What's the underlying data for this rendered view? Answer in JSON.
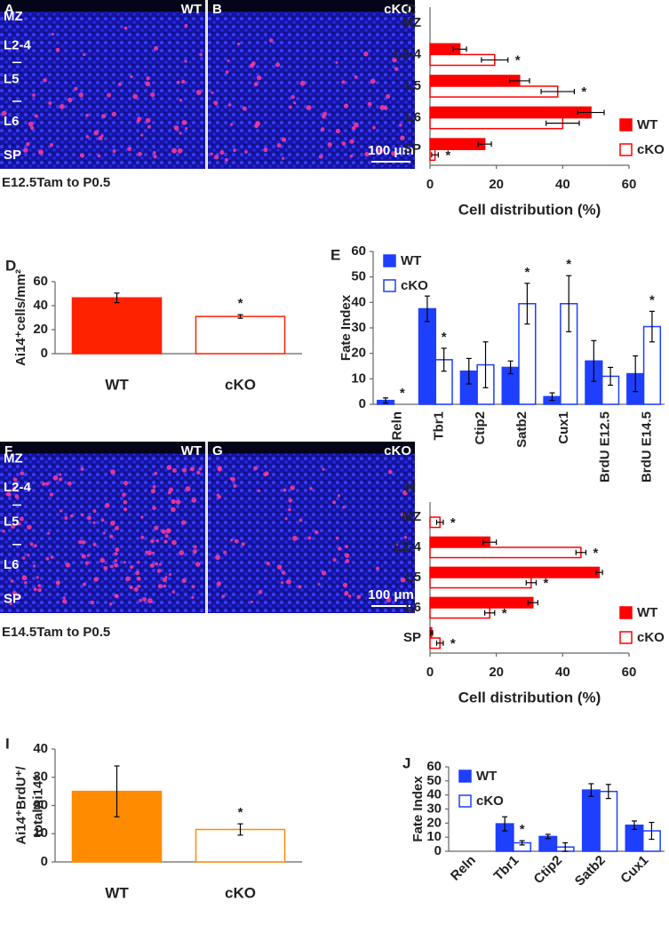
{
  "image_panels": [
    {
      "letters": [
        "A",
        "B"
      ],
      "conditions": [
        "WT",
        "cKO"
      ],
      "layers": [
        "MZ",
        "L2-4",
        "L5",
        "L6",
        "SP"
      ],
      "scale_bar": "100 μm",
      "caption": "E12.5Tam to P0.5"
    },
    {
      "letters": [
        "F",
        "G"
      ],
      "conditions": [
        "WT",
        "cKO"
      ],
      "layers": [
        "MZ",
        "L2-4",
        "L5",
        "L6",
        "SP"
      ],
      "scale_bar": "100 μm",
      "caption": "E14.5Tam to P0.5"
    }
  ],
  "chart_data": [
    {
      "type": "hbar",
      "panel": "C",
      "categories": [
        "MZ",
        "L2-4",
        "L5",
        "L6",
        "SP"
      ],
      "series": [
        {
          "name": "WT",
          "color": "#ff0000",
          "style": "solid",
          "values": [
            0,
            9,
            27,
            48.5,
            16.5
          ],
          "errors": [
            0,
            2,
            3,
            4,
            2
          ]
        },
        {
          "name": "cKO",
          "color": "#ff0000",
          "style": "outline",
          "values": [
            0,
            19.5,
            38.5,
            40,
            1.5
          ],
          "errors": [
            0,
            4,
            5,
            5,
            1
          ]
        }
      ],
      "significance": [
        null,
        "*",
        "*",
        null,
        "*"
      ],
      "xlim": [
        0,
        60
      ],
      "xticks": [
        0,
        20,
        40,
        60
      ],
      "xlabel": "Cell distribution (%)",
      "legend": "lower right"
    },
    {
      "type": "bar",
      "panel": "D",
      "categories": [
        "WT",
        "cKO"
      ],
      "values": [
        46.5,
        31
      ],
      "errors": [
        4,
        1.5
      ],
      "color": "#ff2200",
      "styles": [
        "solid",
        "outline"
      ],
      "significance": [
        null,
        "*"
      ],
      "ylim": [
        0,
        60
      ],
      "yticks": [
        0,
        20,
        40,
        60
      ],
      "ylabel": [
        "Ai14⁺cells/mm²"
      ]
    },
    {
      "type": "grouped",
      "panel": "E",
      "categories": [
        "Reln",
        "Tbr1",
        "Ctip2",
        "Satb2",
        "Cux1",
        "BrdU E12.5",
        "BrdU E14.5"
      ],
      "series": [
        {
          "name": "WT",
          "color": "#1f3fff",
          "style": "solid",
          "values": [
            1.5,
            37.5,
            13,
            14.5,
            3,
            17,
            12
          ],
          "errors": [
            1,
            5,
            5,
            2.5,
            1.5,
            8,
            7
          ]
        },
        {
          "name": "cKO",
          "color": "#1f3fff",
          "style": "outline",
          "values": [
            0,
            17.5,
            15.5,
            39.5,
            39.5,
            11,
            30.5
          ],
          "errors": [
            0,
            4.5,
            9,
            8,
            11,
            3.5,
            6
          ]
        }
      ],
      "significance": [
        "*",
        "*",
        null,
        "*",
        "*",
        null,
        "*"
      ],
      "ylim": [
        0,
        60
      ],
      "yticks": [
        0,
        10,
        20,
        30,
        40,
        50,
        60
      ],
      "ylabel": [
        "Fate Index"
      ],
      "legend": "upper left",
      "label_rotation": -90
    },
    {
      "type": "hbar",
      "panel": "H",
      "categories": [
        "MZ",
        "L2-4",
        "L5",
        "L6",
        "SP"
      ],
      "series": [
        {
          "name": "WT",
          "color": "#ff0000",
          "style": "solid",
          "values": [
            0,
            18,
            51,
            31,
            0.5
          ],
          "errors": [
            0,
            2,
            1,
            1.5,
            0.3
          ]
        },
        {
          "name": "cKO",
          "color": "#ff0000",
          "style": "outline",
          "values": [
            3,
            45.5,
            30.5,
            18,
            3
          ],
          "errors": [
            1,
            1.5,
            1.5,
            1.5,
            1
          ]
        }
      ],
      "significance": [
        "*",
        "*",
        "*",
        "*",
        "*"
      ],
      "xlim": [
        0,
        60
      ],
      "xticks": [
        0,
        20,
        40,
        60
      ],
      "xlabel": "Cell distribution (%)",
      "legend": "lower right"
    },
    {
      "type": "bar",
      "panel": "I",
      "categories": [
        "WT",
        "cKO"
      ],
      "values": [
        25,
        11.5
      ],
      "errors": [
        9,
        2
      ],
      "color": "#ff8c00",
      "styles": [
        "solid",
        "outline"
      ],
      "significance": [
        null,
        "*"
      ],
      "ylim": [
        0,
        40
      ],
      "yticks": [
        0,
        10,
        20,
        30,
        40
      ],
      "ylabel": [
        "Ai14⁺BrdU⁺/",
        "totalAi14⁺"
      ]
    },
    {
      "type": "grouped",
      "panel": "J",
      "categories": [
        "Reln",
        "Tbr1",
        "Ctip2",
        "Satb2",
        "Cux1"
      ],
      "series": [
        {
          "name": "WT",
          "color": "#1f3fff",
          "style": "solid",
          "values": [
            0,
            19.5,
            10.5,
            43.5,
            18.5
          ],
          "errors": [
            0,
            5,
            1.5,
            4.5,
            3
          ]
        },
        {
          "name": "cKO",
          "color": "#1f3fff",
          "style": "outline",
          "values": [
            0,
            6,
            3,
            42.5,
            14.5
          ],
          "errors": [
            0,
            1.5,
            3,
            5,
            6
          ]
        }
      ],
      "significance": [
        null,
        "*",
        null,
        null,
        null
      ],
      "ylim": [
        0,
        60
      ],
      "yticks": [
        0,
        10,
        20,
        30,
        40,
        50,
        60
      ],
      "ylabel": [
        "Fate Index"
      ],
      "legend": "upper left",
      "label_rotation": -45
    }
  ]
}
